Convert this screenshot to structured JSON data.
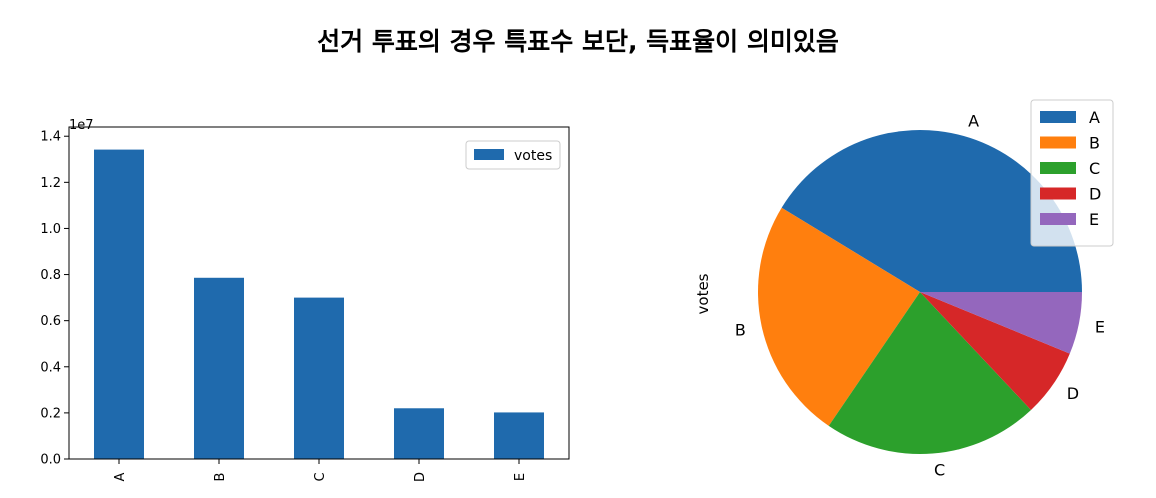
{
  "title": "선거 투표의 경우 특표수 보단, 득표율이 의미있음",
  "chart_data": [
    {
      "type": "bar",
      "categories": [
        "A",
        "B",
        "C",
        "D",
        "E"
      ],
      "series": [
        {
          "name": "votes",
          "values": [
            13420000,
            7860000,
            7000000,
            2200000,
            2020000
          ],
          "color": "#1f6aad"
        }
      ],
      "ylim": [
        0,
        14400000
      ],
      "yticks": [
        0,
        2000000,
        4000000,
        6000000,
        8000000,
        10000000,
        12000000,
        14000000
      ],
      "ytick_labels": [
        "0.0",
        "0.2",
        "0.4",
        "0.6",
        "0.8",
        "1.0",
        "1.2",
        "1.4"
      ],
      "offset_label": "1e7",
      "legend": "top-right",
      "grid": false
    },
    {
      "type": "pie",
      "ylabel": "votes",
      "labels": [
        "A",
        "B",
        "C",
        "D",
        "E"
      ],
      "values": [
        13420000,
        7860000,
        7000000,
        2200000,
        2020000
      ],
      "colors": [
        "#1f6aad",
        "#ff7f0e",
        "#2ca02c",
        "#d62728",
        "#9467bd"
      ],
      "legend": "top-right"
    }
  ]
}
